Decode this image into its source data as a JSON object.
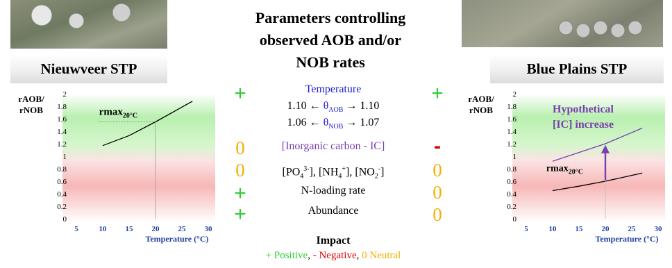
{
  "left_panel": {
    "title": "Nieuwveer STP"
  },
  "right_panel": {
    "title": "Blue Plains STP"
  },
  "center": {
    "heading_lines": [
      "Parameters controlling",
      "observed AOB and/or",
      "NOB rates"
    ],
    "parameters": {
      "temperature": {
        "label": "Temperature",
        "theta_aob": {
          "left": "1.10",
          "symbol": "θ",
          "sub": "AOB",
          "right": "1.10"
        },
        "theta_nob": {
          "left": "1.06",
          "symbol": "θ",
          "sub": "NOB",
          "right": "1.07"
        },
        "impact_left": "+",
        "impact_right": "+"
      },
      "inorganic_carbon": {
        "label": "[Inorganic carbon - IC]",
        "impact_left": "0",
        "impact_right": "-"
      },
      "nutrients": {
        "po4": {
          "base": "[PO",
          "sub": "4",
          "sup": "3-",
          "end": "]"
        },
        "nh4": {
          "base": "[NH",
          "sub": "4",
          "sup": "+",
          "end": "]"
        },
        "no2": {
          "base": "[NO",
          "sub": "2",
          "sup": "-",
          "end": "]"
        },
        "impact_left": "0",
        "impact_right": "0"
      },
      "n_loading": {
        "label": "N-loading rate",
        "impact_left": "+",
        "impact_right": "0"
      },
      "abundance": {
        "label": "Abundance",
        "impact_left": "+",
        "impact_right": "0"
      }
    },
    "impact": {
      "title": "Impact",
      "positive": "+ Positive",
      "negative": "- Negative",
      "neutral": "0 Neutral",
      "separator": ", "
    }
  },
  "colors": {
    "positive": "#33cc33",
    "negative": "#e00000",
    "neutral": "#f5b000",
    "blue_text": "#1f1fcc",
    "purple": "#7a3fb0",
    "axis_label_blue": "#1f3f9f"
  },
  "chart_data": [
    {
      "type": "line",
      "panel": "Nieuwveer STP",
      "ylabel": "rAOB/\nrNOB",
      "xlabel": "Temperature (°C)",
      "xlim": [
        5,
        30
      ],
      "ylim": [
        0,
        2
      ],
      "xticks": [
        5,
        10,
        15,
        20,
        25,
        30
      ],
      "yticks": [
        0,
        0.2,
        0.4,
        0.6,
        0.8,
        1,
        1.2,
        1.4,
        1.6,
        1.8,
        2
      ],
      "series": [
        {
          "x": [
            10,
            15,
            20,
            27
          ],
          "y": [
            1.17,
            1.33,
            1.55,
            1.88
          ]
        }
      ],
      "annotations": [
        {
          "text": "rmax",
          "sub": "20°C",
          "x": 20,
          "y": 1.55
        }
      ],
      "background": "green above ~1, red below ~1"
    },
    {
      "type": "line",
      "panel": "Blue Plains STP",
      "ylabel": "rAOB/\nrNOB",
      "xlabel": "Temperature (°C)",
      "xlim": [
        5,
        30
      ],
      "ylim": [
        0,
        2
      ],
      "xticks": [
        5,
        10,
        15,
        20,
        25,
        30
      ],
      "yticks": [
        0,
        0.2,
        0.4,
        0.6,
        0.8,
        1,
        1.2,
        1.4,
        1.6,
        1.8,
        2
      ],
      "series": [
        {
          "x": [
            10,
            15,
            20,
            27
          ],
          "y": [
            0.45,
            0.52,
            0.6,
            0.73
          ]
        },
        {
          "x": [
            10,
            15,
            20,
            27
          ],
          "y": [
            0.92,
            1.06,
            1.2,
            1.45
          ]
        }
      ],
      "annotations": [
        {
          "text": "rmax",
          "sub": "20°C",
          "x": 20,
          "y": 0.6
        },
        {
          "text": "Hypothetical\n[IC] increase",
          "x": 13,
          "y": 1.7
        },
        {
          "arrow": true,
          "x": 20,
          "y_from": 0.62,
          "y_to": 1.18
        }
      ],
      "background": "green above ~1, red below ~1"
    }
  ]
}
